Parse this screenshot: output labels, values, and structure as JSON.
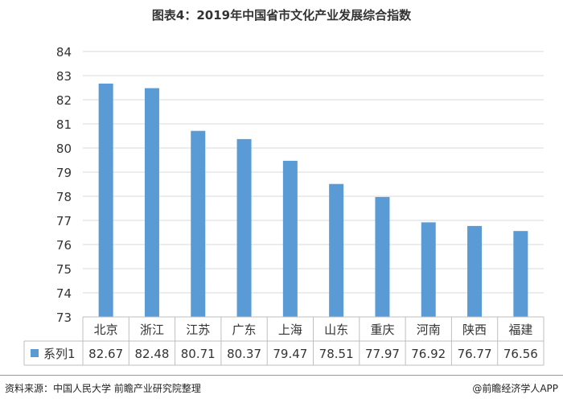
{
  "page": {
    "title": "图表4：2019年中国省市文化产业发展综合指数",
    "source": "资料来源：中国人民大学 前瞻产业研究院整理",
    "brand": "@前瞻经济学人APP"
  },
  "chart_data": {
    "type": "bar",
    "title": "图表4：2019年中国省市文化产业发展综合指数",
    "categories": [
      "北京",
      "浙江",
      "江苏",
      "广东",
      "上海",
      "山东",
      "重庆",
      "河南",
      "陕西",
      "福建"
    ],
    "series": [
      {
        "name": "系列1",
        "values": [
          82.67,
          82.48,
          80.71,
          80.37,
          79.47,
          78.51,
          77.97,
          76.92,
          76.77,
          76.56
        ]
      }
    ],
    "ylim": [
      73,
      84
    ],
    "yticks": [
      73,
      74,
      75,
      76,
      77,
      78,
      79,
      80,
      81,
      82,
      83,
      84
    ],
    "grid": true,
    "data_table": true,
    "colors": {
      "bar": "#5b9bd5",
      "grid": "#d9d9d9",
      "axis": "#bfbfbf"
    }
  }
}
